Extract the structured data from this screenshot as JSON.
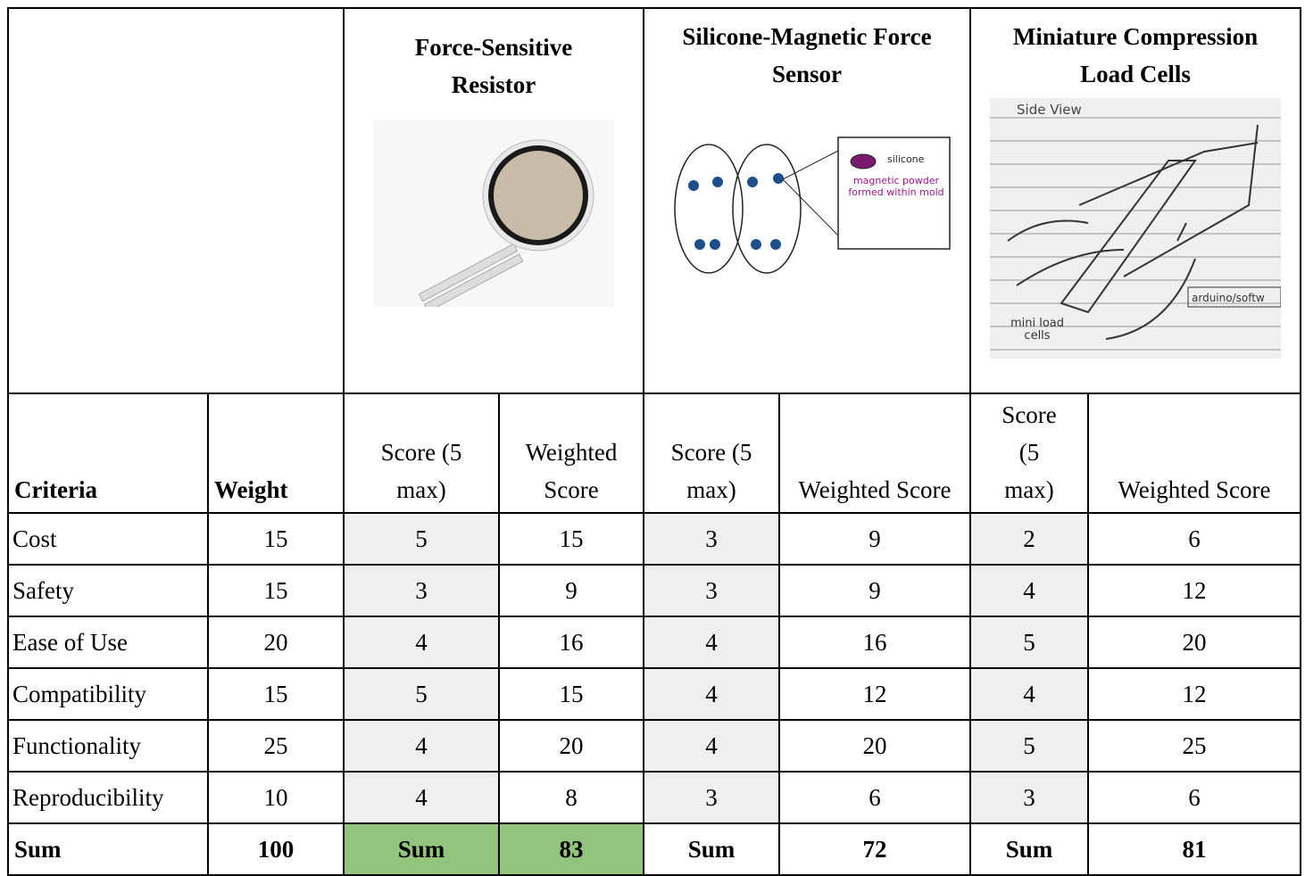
{
  "header": {
    "products": [
      {
        "name": "Force-Sensitive Resistor",
        "image_labels": []
      },
      {
        "name": "Silicone-Magnetic Force Sensor",
        "image_labels": [
          "silicone",
          "magnetic powder formed within mold"
        ]
      },
      {
        "name": "Miniature Compression Load Cells",
        "image_labels": [
          "Side View",
          "arduino/softw",
          "mini load cells"
        ]
      }
    ]
  },
  "table": {
    "columns": [
      "Criteria",
      "Weight",
      "Score (5 max)",
      "Weighted Score",
      "Score (5 max)",
      "Weighted Score",
      "Score (5 max)",
      "Weighted Score"
    ],
    "rows": [
      [
        "Cost",
        15,
        5,
        15,
        3,
        9,
        2,
        6
      ],
      [
        "Safety",
        15,
        3,
        9,
        3,
        9,
        4,
        12
      ],
      [
        "Ease of Use",
        20,
        4,
        16,
        4,
        16,
        5,
        20
      ],
      [
        "Compatibility",
        15,
        5,
        15,
        4,
        12,
        4,
        12
      ],
      [
        "Functionality",
        25,
        4,
        20,
        4,
        20,
        5,
        25
      ],
      [
        "Reproducibility",
        10,
        4,
        8,
        3,
        6,
        3,
        6
      ]
    ],
    "sum": [
      "Sum",
      100,
      "Sum",
      83,
      "Sum",
      72,
      "Sum",
      81
    ]
  }
}
